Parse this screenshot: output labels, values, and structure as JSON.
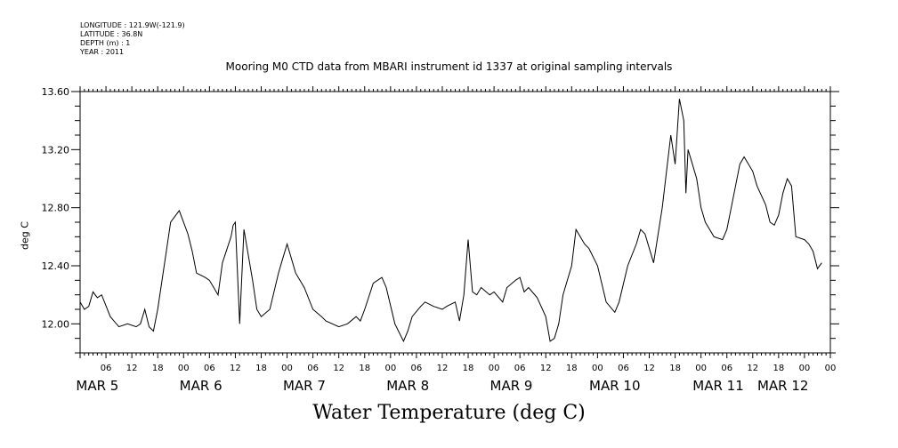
{
  "header": {
    "longitude": "LONGITUDE : 121.9W(-121.9)",
    "latitude": "LATITUDE : 36.8N",
    "depth": "DEPTH (m) : 1",
    "year": "YEAR : 2011"
  },
  "chart_data": {
    "type": "line",
    "title": "Mooring M0 CTD data from MBARI instrument id 1337 at original sampling intervals",
    "xlabel": "Water Temperature (deg C)",
    "ylabel": "deg C",
    "ylim": [
      11.8,
      13.6
    ],
    "y_ticks": [
      "12.00",
      "12.40",
      "12.80",
      "13.20",
      "13.60"
    ],
    "x_range": [
      "2011-03-05T00:00",
      "2011-03-12T06:00"
    ],
    "x_hour_labels": [
      "06",
      "12",
      "18",
      "00",
      "06",
      "12",
      "18",
      "00",
      "06",
      "12",
      "18",
      "00",
      "06",
      "12",
      "18",
      "00",
      "06",
      "12",
      "18",
      "00",
      "06",
      "12",
      "18",
      "00",
      "06",
      "12",
      "18",
      "00",
      "00"
    ],
    "x_day_labels": [
      "MAR 5",
      "MAR 6",
      "MAR 7",
      "MAR 8",
      "MAR 9",
      "MAR 10",
      "MAR 11",
      "MAR 12"
    ],
    "grid": false,
    "series": [
      {
        "x": [
          "2011-03-05T00:00",
          "2011-03-05T01:00",
          "2011-03-05T02:00",
          "2011-03-05T03:00",
          "2011-03-05T04:00",
          "2011-03-05T05:00",
          "2011-03-05T07:00",
          "2011-03-05T09:00",
          "2011-03-05T11:00",
          "2011-03-05T13:00",
          "2011-03-05T14:00",
          "2011-03-05T15:00",
          "2011-03-05T16:00",
          "2011-03-05T17:00",
          "2011-03-05T18:00",
          "2011-03-05T20:00",
          "2011-03-05T21:00",
          "2011-03-05T23:00",
          "2011-03-06T01:00",
          "2011-03-06T02:00",
          "2011-03-06T03:00",
          "2011-03-06T05:00",
          "2011-03-06T06:00",
          "2011-03-06T08:00",
          "2011-03-06T09:00",
          "2011-03-06T11:00",
          "2011-03-06T11:30",
          "2011-03-06T12:00",
          "2011-03-06T13:00",
          "2011-03-06T14:00",
          "2011-03-06T16:00",
          "2011-03-06T17:00",
          "2011-03-06T18:00",
          "2011-03-06T20:00",
          "2011-03-06T22:00",
          "2011-03-06T23:00",
          "2011-03-07T00:00",
          "2011-03-07T02:00",
          "2011-03-07T04:00",
          "2011-03-07T06:00",
          "2011-03-07T08:00",
          "2011-03-07T09:00",
          "2011-03-07T12:00",
          "2011-03-07T14:00",
          "2011-03-07T16:00",
          "2011-03-07T17:00",
          "2011-03-07T18:00",
          "2011-03-07T20:00",
          "2011-03-07T22:00",
          "2011-03-07T23:00",
          "2011-03-08T01:00",
          "2011-03-08T03:00",
          "2011-03-08T04:00",
          "2011-03-08T05:00",
          "2011-03-08T07:00",
          "2011-03-08T08:00",
          "2011-03-08T10:00",
          "2011-03-08T12:00",
          "2011-03-08T13:00",
          "2011-03-08T15:00",
          "2011-03-08T16:00",
          "2011-03-08T17:00",
          "2011-03-08T18:00",
          "2011-03-08T19:00",
          "2011-03-08T20:00",
          "2011-03-08T21:00",
          "2011-03-08T23:00",
          "2011-03-09T00:00",
          "2011-03-09T02:00",
          "2011-03-09T03:00",
          "2011-03-09T05:00",
          "2011-03-09T06:00",
          "2011-03-09T07:00",
          "2011-03-09T08:00",
          "2011-03-09T10:00",
          "2011-03-09T12:00",
          "2011-03-09T13:00",
          "2011-03-09T14:00",
          "2011-03-09T15:00",
          "2011-03-09T16:00",
          "2011-03-09T18:00",
          "2011-03-09T19:00",
          "2011-03-09T21:00",
          "2011-03-09T22:00",
          "2011-03-10T00:00",
          "2011-03-10T02:00",
          "2011-03-10T04:00",
          "2011-03-10T05:00",
          "2011-03-10T07:00",
          "2011-03-10T09:00",
          "2011-03-10T10:00",
          "2011-03-10T11:00",
          "2011-03-10T13:00",
          "2011-03-10T15:00",
          "2011-03-10T17:00",
          "2011-03-10T18:00",
          "2011-03-10T19:00",
          "2011-03-10T20:00",
          "2011-03-10T20:30",
          "2011-03-10T21:00",
          "2011-03-10T22:00",
          "2011-03-10T23:00",
          "2011-03-11T00:00",
          "2011-03-11T01:00",
          "2011-03-11T03:00",
          "2011-03-11T05:00",
          "2011-03-11T06:00",
          "2011-03-11T07:00",
          "2011-03-11T09:00",
          "2011-03-11T10:00",
          "2011-03-11T12:00",
          "2011-03-11T13:00",
          "2011-03-11T15:00",
          "2011-03-11T16:00",
          "2011-03-11T17:00",
          "2011-03-11T18:00",
          "2011-03-11T19:00",
          "2011-03-11T20:00",
          "2011-03-11T21:00",
          "2011-03-11T22:00",
          "2011-03-12T00:00",
          "2011-03-12T01:00",
          "2011-03-12T02:00",
          "2011-03-12T03:00",
          "2011-03-12T04:00"
        ],
        "y": [
          12.15,
          12.1,
          12.12,
          12.22,
          12.18,
          12.2,
          12.05,
          11.98,
          12.0,
          11.98,
          12.0,
          12.1,
          11.98,
          11.95,
          12.1,
          12.5,
          12.7,
          12.78,
          12.62,
          12.5,
          12.35,
          12.32,
          12.3,
          12.2,
          12.42,
          12.6,
          12.68,
          12.7,
          12.0,
          12.65,
          12.3,
          12.1,
          12.05,
          12.1,
          12.35,
          12.45,
          12.55,
          12.35,
          12.25,
          12.1,
          12.05,
          12.02,
          11.98,
          12.0,
          12.05,
          12.02,
          12.1,
          12.28,
          12.32,
          12.25,
          12.0,
          11.88,
          11.95,
          12.05,
          12.12,
          12.15,
          12.12,
          12.1,
          12.12,
          12.15,
          12.02,
          12.2,
          12.58,
          12.22,
          12.2,
          12.25,
          12.2,
          12.22,
          12.15,
          12.25,
          12.3,
          12.32,
          12.22,
          12.25,
          12.18,
          12.05,
          11.88,
          11.9,
          12.0,
          12.2,
          12.4,
          12.65,
          12.55,
          12.52,
          12.4,
          12.15,
          12.08,
          12.15,
          12.4,
          12.55,
          12.65,
          12.62,
          12.42,
          12.8,
          13.3,
          13.1,
          13.55,
          13.4,
          12.9,
          13.2,
          13.1,
          13.0,
          12.8,
          12.7,
          12.6,
          12.58,
          12.65,
          12.8,
          13.1,
          13.15,
          13.05,
          12.95,
          12.82,
          12.7,
          12.68,
          12.75,
          12.9,
          13.0,
          12.95,
          12.6,
          12.58,
          12.55,
          12.5,
          12.38,
          12.42
        ]
      }
    ]
  }
}
